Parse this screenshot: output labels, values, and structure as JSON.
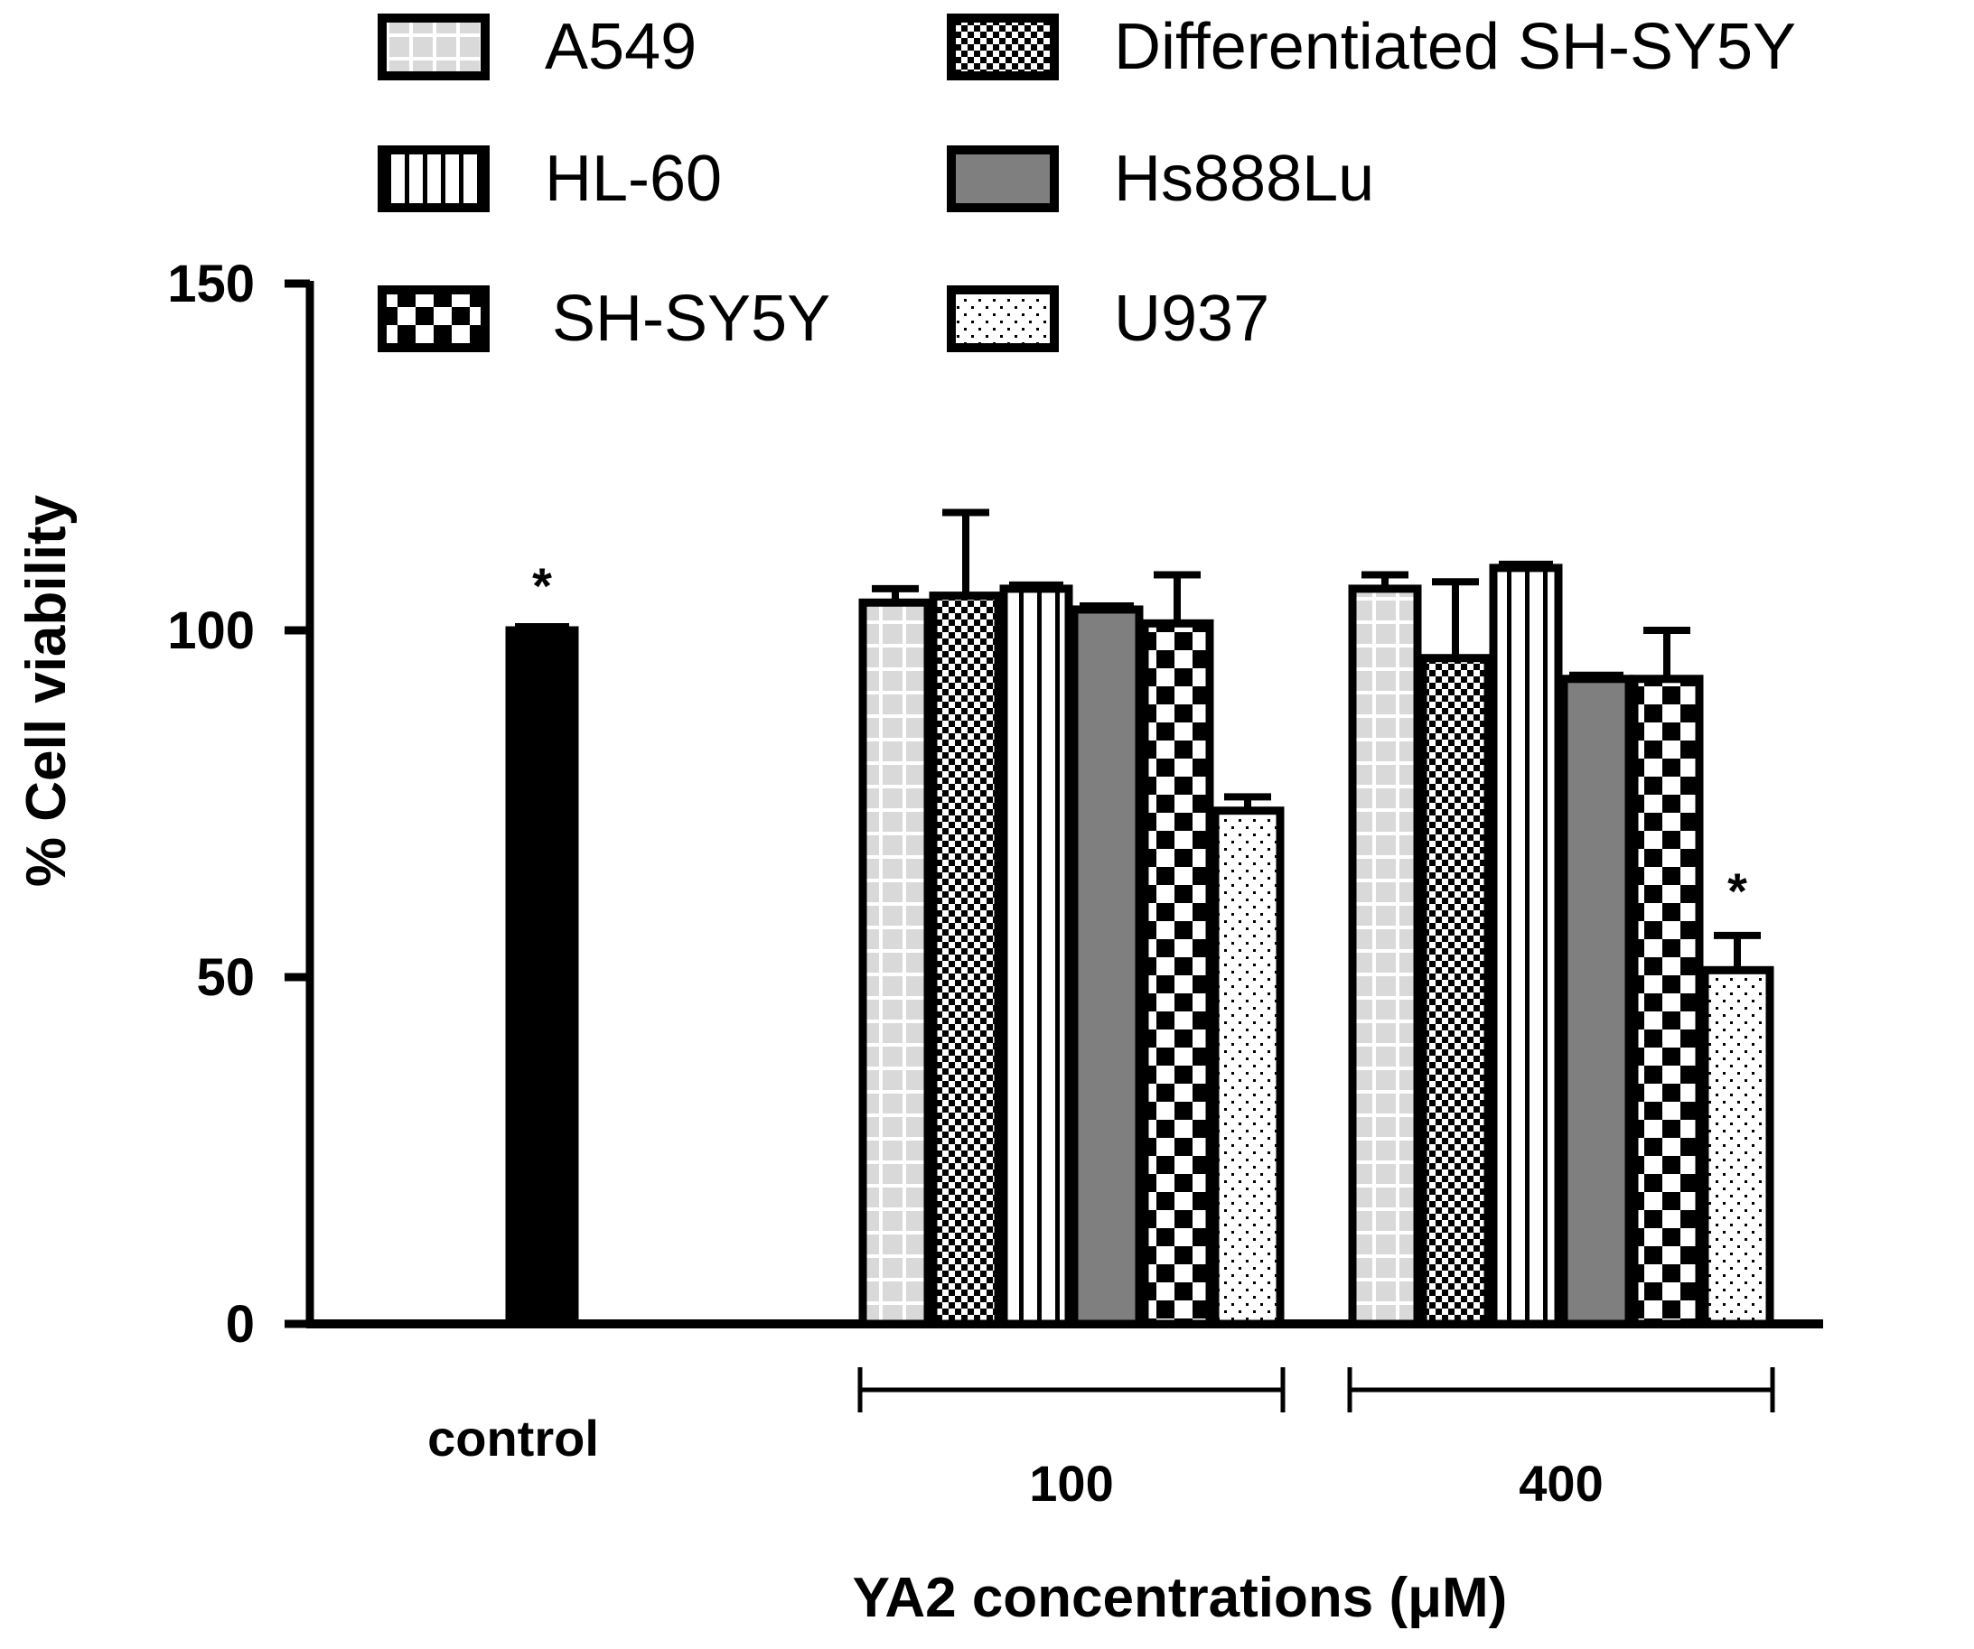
{
  "chart_data": {
    "type": "bar",
    "ylabel": "% Cell viability",
    "xlabel": "YA2 concentrations (μM)",
    "ylim": [
      0,
      150
    ],
    "yticks": [
      0,
      50,
      100,
      150
    ],
    "legend_position": "top",
    "groups": [
      {
        "label": "control",
        "bars": [
          {
            "series": "control",
            "value": 100,
            "error": 0,
            "significant": true
          }
        ]
      },
      {
        "label": "100",
        "bars": [
          {
            "series": "A549",
            "value": 104,
            "error": 2
          },
          {
            "series": "Differentiated SH-SY5Y",
            "value": 105,
            "error": 12
          },
          {
            "series": "HL-60",
            "value": 106,
            "error": 0
          },
          {
            "series": "Hs888Lu",
            "value": 103,
            "error": 0
          },
          {
            "series": "SH-SY5Y",
            "value": 101,
            "error": 7
          },
          {
            "series": "U937",
            "value": 74,
            "error": 2
          }
        ]
      },
      {
        "label": "400",
        "bars": [
          {
            "series": "A549",
            "value": 106,
            "error": 2
          },
          {
            "series": "Differentiated SH-SY5Y",
            "value": 96,
            "error": 11
          },
          {
            "series": "HL-60",
            "value": 109,
            "error": 0
          },
          {
            "series": "Hs888Lu",
            "value": 93,
            "error": 0
          },
          {
            "series": "SH-SY5Y",
            "value": 93,
            "error": 7
          },
          {
            "series": "U937",
            "value": 51,
            "error": 5,
            "significant": true
          }
        ]
      }
    ],
    "legend": [
      {
        "name": "A549",
        "pattern": "grid"
      },
      {
        "name": "Differentiated SH-SY5Y",
        "pattern": "finecheck"
      },
      {
        "name": "HL-60",
        "pattern": "vstripes"
      },
      {
        "name": "Hs888Lu",
        "pattern": "gray"
      },
      {
        "name": "SH-SY5Y",
        "pattern": "check"
      },
      {
        "name": "U937",
        "pattern": "dots"
      }
    ],
    "annotation_mark": "*"
  }
}
